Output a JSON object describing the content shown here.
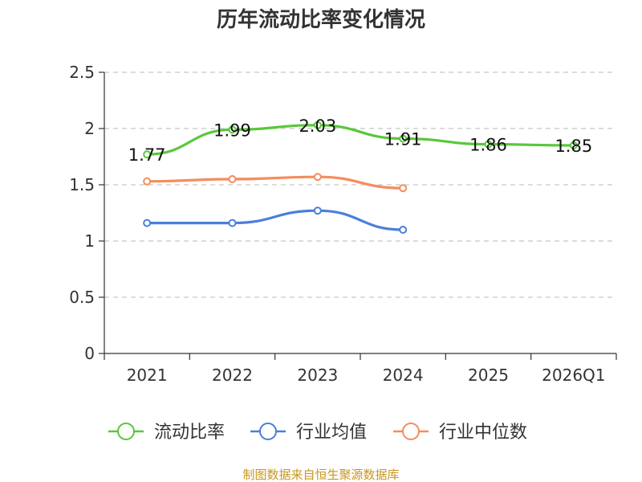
{
  "chart_data": {
    "type": "line",
    "title": "历年流动比率变化情况",
    "categories": [
      "2021",
      "2022",
      "2023",
      "2024",
      "2025",
      "2026Q1"
    ],
    "y_ticks": [
      "0",
      "0.5",
      "1",
      "1.5",
      "2",
      "2.5"
    ],
    "ylim": [
      0,
      2.5
    ],
    "grid": true,
    "legend_position": "bottom",
    "series": [
      {
        "name": "流动比率",
        "color": "#5ac73a",
        "values": [
          1.77,
          1.99,
          2.03,
          1.91,
          1.86,
          1.85
        ],
        "labels": [
          "1.77",
          "1.99",
          "2.03",
          "1.91",
          "1.86",
          "1.85"
        ],
        "show_labels": true
      },
      {
        "name": "行业均值",
        "color": "#4a7fdb",
        "values": [
          1.16,
          1.16,
          1.27,
          1.1,
          null,
          null
        ],
        "show_labels": false
      },
      {
        "name": "行业中位数",
        "color": "#f58d5c",
        "values": [
          1.53,
          1.55,
          1.57,
          1.47,
          null,
          null
        ],
        "show_labels": false
      }
    ],
    "source": "制图数据来自恒生聚源数据库"
  }
}
